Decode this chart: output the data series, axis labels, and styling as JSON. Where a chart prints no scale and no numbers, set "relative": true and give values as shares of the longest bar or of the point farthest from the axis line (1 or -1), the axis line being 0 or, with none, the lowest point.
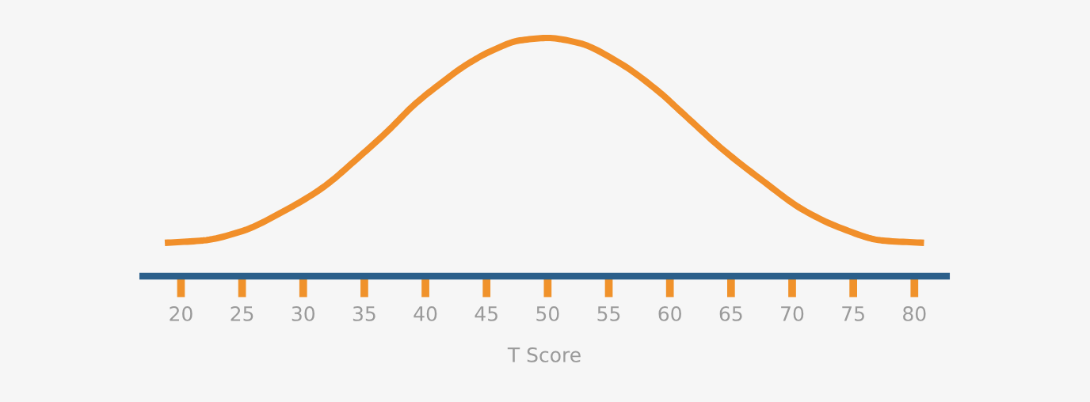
{
  "chart_data": {
    "type": "line",
    "xlabel": "T Score",
    "relative": true,
    "x": [
      18.68,
      21.81,
      25.05,
      28.3,
      31.54,
      34.78,
      36.93,
      39.09,
      41.26,
      43.42,
      45.57,
      47.74,
      50,
      52.49,
      55.73,
      58.97,
      61.13,
      64.37,
      67.61,
      70.85,
      74.09,
      77.33,
      80.79
    ],
    "series": [
      {
        "color": "#f18f2a",
        "values": [
          0.14,
          0.15,
          0.19,
          0.27,
          0.37,
          0.51,
          0.61,
          0.72,
          0.81,
          0.89,
          0.95,
          0.99,
          1.0,
          0.98,
          0.9,
          0.78,
          0.68,
          0.53,
          0.4,
          0.28,
          0.2,
          0.15,
          0.14
        ]
      }
    ],
    "xlim": [
      16.6,
      82.9
    ],
    "xticks": [
      20,
      25,
      30,
      35,
      40,
      45,
      50,
      55,
      60,
      65,
      70,
      75,
      80
    ],
    "line_style": "solid",
    "marker": "none"
  }
}
